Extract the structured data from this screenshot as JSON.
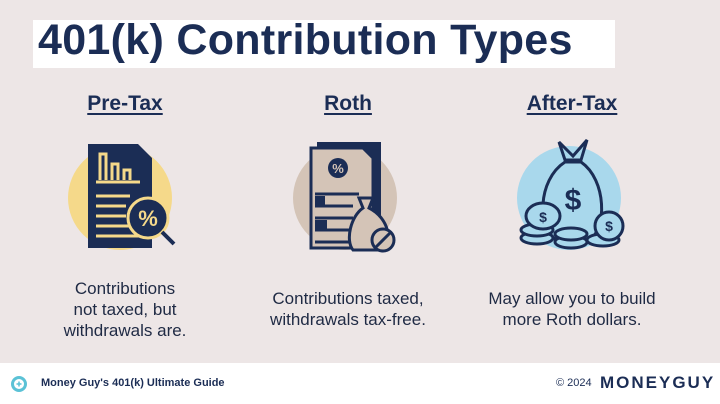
{
  "title": "401(k) Contribution Types",
  "columns": [
    {
      "heading": "Pre-Tax",
      "description_lines": [
        "Contributions",
        "not taxed, but",
        "withdrawals are."
      ],
      "icon": "document-percent-magnifier-icon",
      "circle_color": "#f5d98a"
    },
    {
      "heading": "Roth",
      "description_lines": [
        "Contributions taxed,",
        "withdrawals tax-free."
      ],
      "icon": "document-money-bag-no-tax-icon",
      "circle_color": "#d4c4b7"
    },
    {
      "heading": "After-Tax",
      "description_lines": [
        "May allow you to build",
        "more Roth dollars."
      ],
      "icon": "money-bag-coins-icon",
      "circle_color": "#a9d8ec"
    }
  ],
  "footer": {
    "guide": "Money Guy's 401(k) Ultimate Guide",
    "copyright": "© 2024",
    "brand": "MONEYGUY"
  },
  "colors": {
    "navy": "#1b2d55",
    "background": "#ede6e6",
    "accent": "#5bc2d6"
  }
}
